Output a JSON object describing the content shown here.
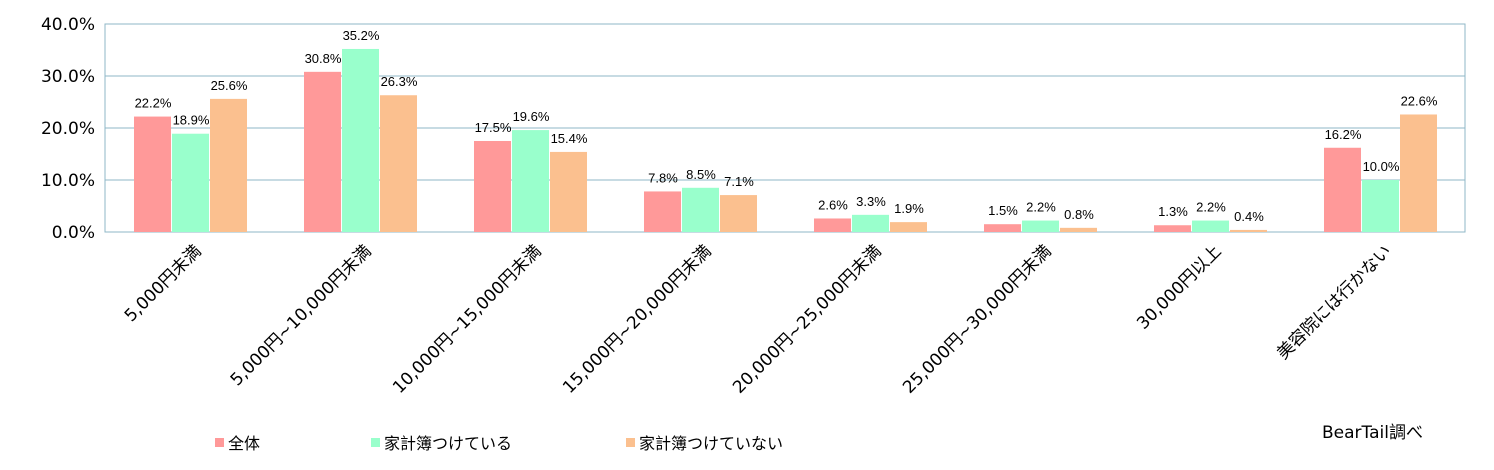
{
  "chart_data": {
    "type": "bar",
    "categories": [
      "5,000円未満",
      "5,000円~10,000円未満",
      "10,000円~15,000円未満",
      "15,000円~20,000円未満",
      "20,000円~25,000円未満",
      "25,000円~30,000円未満",
      "30,000円以上",
      "美容院には行かない"
    ],
    "series": [
      {
        "name": "全体",
        "values": [
          22.2,
          30.8,
          17.5,
          7.8,
          2.6,
          1.5,
          1.3,
          16.2
        ],
        "labels": [
          "22.2%",
          "30.8%",
          "17.5%",
          "7.8%",
          "2.6%",
          "1.5%",
          "1.3%",
          "16.2%"
        ]
      },
      {
        "name": "家計簿つけている",
        "values": [
          18.9,
          35.2,
          19.6,
          8.5,
          3.3,
          2.2,
          2.2,
          10.0
        ],
        "labels": [
          "18.9%",
          "35.2%",
          "19.6%",
          "8.5%",
          "3.3%",
          "2.2%",
          "2.2%",
          "10.0%"
        ]
      },
      {
        "name": "家計簿つけていない",
        "values": [
          25.6,
          26.3,
          15.4,
          7.1,
          1.9,
          0.8,
          0.4,
          22.6
        ],
        "labels": [
          "25.6%",
          "26.3%",
          "15.4%",
          "7.1%",
          "1.9%",
          "0.8%",
          "0.4%",
          "22.6%"
        ]
      }
    ],
    "colors": [
      "#ff9999",
      "#99ffcc",
      "#fbc08f"
    ],
    "ylim": [
      0,
      40
    ],
    "yticks": [
      0,
      10,
      20,
      30,
      40
    ],
    "ytick_labels": [
      "0.0%",
      "10.0%",
      "20.0%",
      "30.0%",
      "40.0%"
    ],
    "grid": true,
    "legend_position": "bottom-left",
    "title": "",
    "xlabel": "",
    "ylabel": ""
  },
  "credit": "BearTail調べ"
}
